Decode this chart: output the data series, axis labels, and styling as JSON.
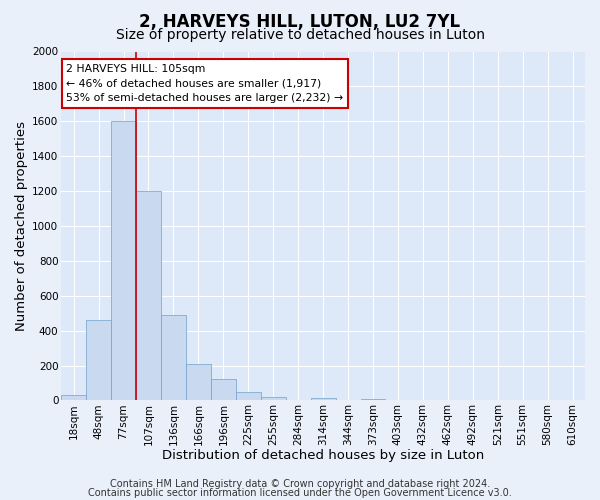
{
  "title": "2, HARVEYS HILL, LUTON, LU2 7YL",
  "subtitle": "Size of property relative to detached houses in Luton",
  "xlabel": "Distribution of detached houses by size in Luton",
  "ylabel": "Number of detached properties",
  "bin_labels": [
    "18sqm",
    "48sqm",
    "77sqm",
    "107sqm",
    "136sqm",
    "166sqm",
    "196sqm",
    "225sqm",
    "255sqm",
    "284sqm",
    "314sqm",
    "344sqm",
    "373sqm",
    "403sqm",
    "432sqm",
    "462sqm",
    "492sqm",
    "521sqm",
    "551sqm",
    "580sqm",
    "610sqm"
  ],
  "bar_heights": [
    30,
    460,
    1600,
    1200,
    490,
    210,
    120,
    50,
    20,
    0,
    15,
    0,
    10,
    0,
    0,
    0,
    0,
    0,
    0,
    0,
    0
  ],
  "bar_color": "#c9d9f0",
  "bar_edge_color": "#6fa0cc",
  "red_line_bin_index": 3,
  "red_line_color": "#cc0000",
  "ylim": [
    0,
    2000
  ],
  "yticks": [
    0,
    200,
    400,
    600,
    800,
    1000,
    1200,
    1400,
    1600,
    1800,
    2000
  ],
  "annotation_title": "2 HARVEYS HILL: 105sqm",
  "annotation_line1": "← 46% of detached houses are smaller (1,917)",
  "annotation_line2": "53% of semi-detached houses are larger (2,232) →",
  "annotation_box_color": "#ffffff",
  "annotation_box_edge": "#cc0000",
  "footer1": "Contains HM Land Registry data © Crown copyright and database right 2024.",
  "footer2": "Contains public sector information licensed under the Open Government Licence v3.0.",
  "bg_color": "#eaf0fa",
  "plot_bg_color": "#dde8f8",
  "grid_color": "#ffffff",
  "title_fontsize": 12,
  "subtitle_fontsize": 10,
  "axis_label_fontsize": 9.5,
  "tick_fontsize": 7.5,
  "footer_fontsize": 7
}
